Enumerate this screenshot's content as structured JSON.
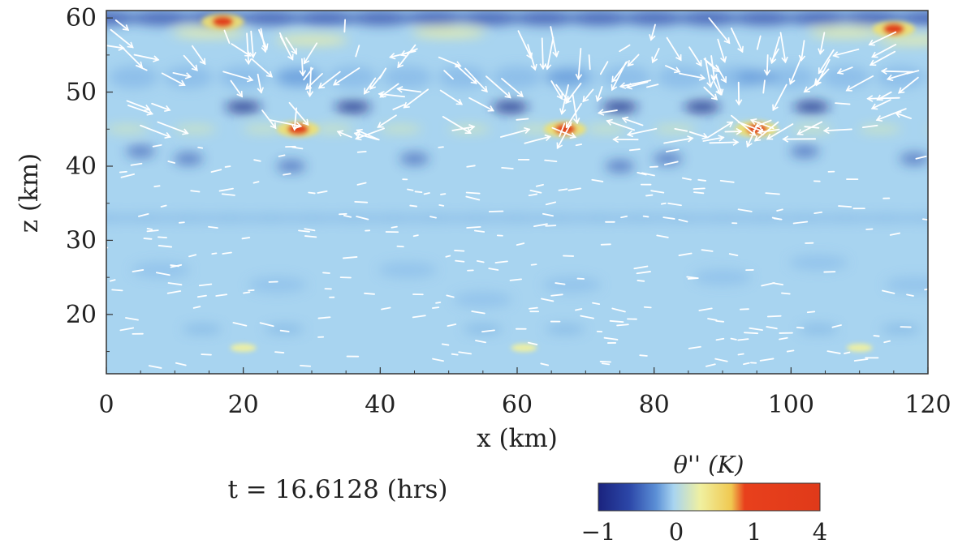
{
  "chart_data": {
    "type": "heatmap",
    "title": "",
    "xlabel": "x (km)",
    "ylabel": "z (km)",
    "xlim": [
      0,
      120
    ],
    "ylim": [
      12,
      61
    ],
    "x_ticks": [
      0,
      20,
      40,
      60,
      80,
      100,
      120
    ],
    "y_ticks": [
      20,
      30,
      40,
      50,
      60
    ],
    "grid": false,
    "field": "potential temperature perturbation",
    "colorbar": {
      "label": "θ'' (K)",
      "ticks": [
        -1,
        0,
        1,
        4
      ],
      "tick_labels": [
        "−1",
        "0",
        "1",
        "4"
      ],
      "colors": [
        "#1a237e",
        "#2c47a8",
        "#5b8fd6",
        "#a8d4f0",
        "#f0f0a0",
        "#f0c850",
        "#e8401c",
        "#e03a1a"
      ]
    },
    "features": [
      {
        "x": 28,
        "z": 45,
        "value": 4
      },
      {
        "x": 67,
        "z": 45,
        "value": 4
      },
      {
        "x": 95,
        "z": 45,
        "value": 4
      },
      {
        "x": 17,
        "z": 59.5,
        "value": 3
      },
      {
        "x": 115,
        "z": 58.5,
        "value": 3
      },
      {
        "x": 20,
        "z": 15.5,
        "value": 0.5
      },
      {
        "x": 61,
        "z": 15.5,
        "value": 0.5
      },
      {
        "x": 110,
        "z": 15.5,
        "value": 0.5
      }
    ],
    "vectors": "wind velocity (white arrows)",
    "annotation": "t = 16.6128 (hrs)"
  },
  "colors": {
    "background": "#a8d4f0",
    "vector": "#ffffff"
  }
}
